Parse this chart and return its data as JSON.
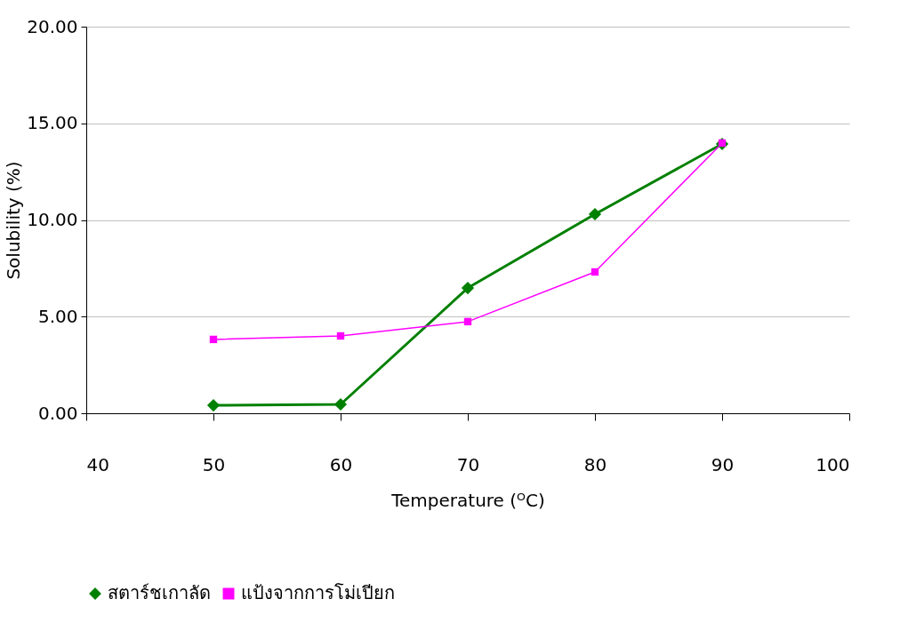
{
  "chart_data": {
    "type": "line",
    "xlabel": "Temperature (ᴼC)",
    "ylabel": "Solubility (%)",
    "x": [
      50,
      60,
      70,
      80,
      90
    ],
    "series": [
      {
        "name": "สตาร์ชเกาลัด",
        "color": "#008000",
        "marker": "diamond",
        "values": [
          0.41,
          0.46,
          6.48,
          10.3,
          13.93
        ]
      },
      {
        "name": "แป้งจากการโม่เปียก",
        "color": "#ff00ff",
        "marker": "square",
        "values": [
          3.82,
          4.0,
          4.74,
          7.31,
          13.98
        ]
      }
    ],
    "xlim": [
      40,
      100
    ],
    "xticks": [
      40,
      50,
      60,
      70,
      80,
      90,
      100
    ],
    "ylim": [
      0,
      20
    ],
    "yticks": [
      {
        "value": 0,
        "label": "0.00"
      },
      {
        "value": 5,
        "label": "5.00"
      },
      {
        "value": 10,
        "label": "10.00"
      },
      {
        "value": 15,
        "label": "15.00"
      },
      {
        "value": 20,
        "label": "20.00"
      }
    ],
    "grid": "y",
    "legend": "bottom",
    "line_style": "solid"
  }
}
